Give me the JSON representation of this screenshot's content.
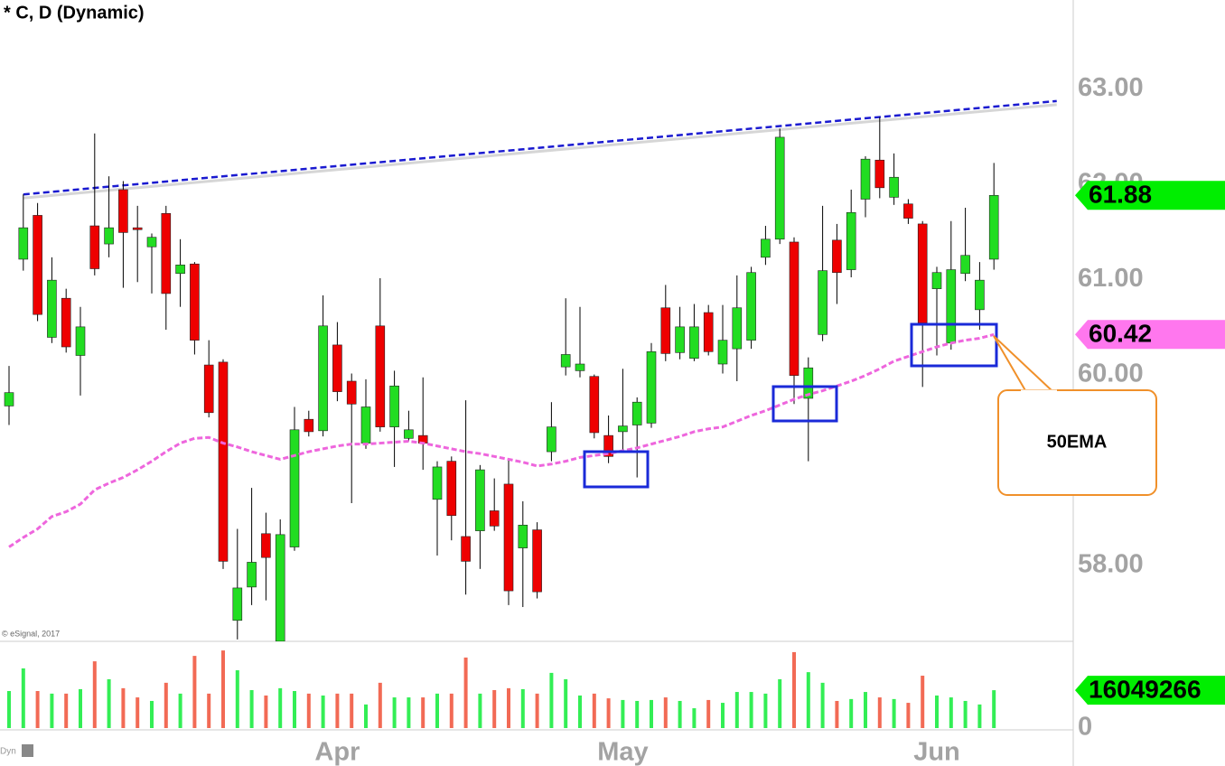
{
  "chart_data": {
    "type": "candlestick",
    "title": "* C, D (Dynamic)",
    "copyright": "© eSignal, 2017",
    "footer_label": "Dyn",
    "annotation": "50EMA",
    "categories": [
      null,
      null,
      null,
      null,
      null,
      null,
      null,
      null,
      null,
      null,
      null,
      null,
      null,
      null,
      null,
      null,
      null,
      null,
      null,
      null,
      null,
      null,
      null,
      "Apr",
      null,
      null,
      null,
      null,
      null,
      null,
      null,
      null,
      null,
      null,
      null,
      null,
      null,
      null,
      null,
      null,
      null,
      null,
      null,
      "May",
      null,
      null,
      null,
      null,
      null,
      null,
      null,
      null,
      null,
      null,
      null,
      null,
      null,
      null,
      null,
      null,
      null,
      null,
      null,
      null,
      null,
      "Jun",
      null,
      null,
      null,
      null
    ],
    "open": [
      59.67,
      61.21,
      61.67,
      60.39,
      60.8,
      60.2,
      61.56,
      61.37,
      61.94,
      61.54,
      61.34,
      61.69,
      61.06,
      61.16,
      60.1,
      60.13,
      57.42,
      57.77,
      58.33,
      57.2,
      58.19,
      59.53,
      59.41,
      60.31,
      59.93,
      59.28,
      60.51,
      59.45,
      59.33,
      59.36,
      58.69,
      59.09,
      58.3,
      58.36,
      58.57,
      58.85,
      58.18,
      58.37,
      59.19,
      60.08,
      60.04,
      59.98,
      59.36,
      59.4,
      59.47,
      59.49,
      60.7,
      60.23,
      60.17,
      60.65,
      60.11,
      60.27,
      60.36,
      61.23,
      61.42,
      61.39,
      59.75,
      60.42,
      61.41,
      61.1,
      61.84,
      62.25,
      61.86,
      61.79,
      61.58,
      60.9,
      60.33,
      61.06,
      60.68,
      61.21
    ],
    "high": [
      60.09,
      61.89,
      61.8,
      61.23,
      60.9,
      60.71,
      62.53,
      62.08,
      62.03,
      61.77,
      61.48,
      61.77,
      61.42,
      61.18,
      60.36,
      60.16,
      58.38,
      58.81,
      58.55,
      58.48,
      59.66,
      59.62,
      60.83,
      60.55,
      60.01,
      59.95,
      61.01,
      60.04,
      59.62,
      59.97,
      59.09,
      59.14,
      59.73,
      59.05,
      58.91,
      59.1,
      58.67,
      58.45,
      59.71,
      60.8,
      60.71,
      60.0,
      59.57,
      60.06,
      59.76,
      60.33,
      60.94,
      60.71,
      60.74,
      60.73,
      60.73,
      61.04,
      61.13,
      61.56,
      62.58,
      61.44,
      60.18,
      61.77,
      61.58,
      61.94,
      62.29,
      62.7,
      62.32,
      61.84,
      61.61,
      61.13,
      61.61,
      61.75,
      61.18,
      62.22
    ],
    "low": [
      59.47,
      61.09,
      60.56,
      60.33,
      60.23,
      59.78,
      61.04,
      61.23,
      60.91,
      60.97,
      60.85,
      60.47,
      60.71,
      60.21,
      59.55,
      57.96,
      57.22,
      57.58,
      57.63,
      57.2,
      58.15,
      59.35,
      59.35,
      59.72,
      58.65,
      59.22,
      59.4,
      59.03,
      59.3,
      59.0,
      58.1,
      58.26,
      57.69,
      57.96,
      58.36,
      57.58,
      57.56,
      57.65,
      59.09,
      59.99,
      59.97,
      59.33,
      59.07,
      59.19,
      58.92,
      59.44,
      60.14,
      60.16,
      60.14,
      60.2,
      60.01,
      59.93,
      60.27,
      61.15,
      61.37,
      59.69,
      59.09,
      60.35,
      60.74,
      61.02,
      61.65,
      61.85,
      61.78,
      61.58,
      59.87,
      60.2,
      60.26,
      60.98,
      60.47,
      61.1
    ],
    "close": [
      59.81,
      61.54,
      60.63,
      60.99,
      60.29,
      60.5,
      61.11,
      61.54,
      61.49,
      61.52,
      61.44,
      60.85,
      61.15,
      60.36,
      59.6,
      58.04,
      57.76,
      58.03,
      58.08,
      58.32,
      59.42,
      59.4,
      60.51,
      59.82,
      59.69,
      59.66,
      59.45,
      59.88,
      59.42,
      59.28,
      59.03,
      58.52,
      58.04,
      59.0,
      58.41,
      57.73,
      58.42,
      57.72,
      59.45,
      60.21,
      60.11,
      59.39,
      59.14,
      59.46,
      59.71,
      60.24,
      60.22,
      60.5,
      60.5,
      60.24,
      60.36,
      60.7,
      61.07,
      61.42,
      62.49,
      59.99,
      60.07,
      61.09,
      61.07,
      61.7,
      62.26,
      61.96,
      62.07,
      61.64,
      60.54,
      61.07,
      61.1,
      61.25,
      60.99,
      61.88
    ],
    "ema": [
      58.19,
      58.29,
      58.38,
      58.51,
      58.56,
      58.64,
      58.79,
      58.86,
      58.92,
      59.0,
      59.09,
      59.19,
      59.28,
      59.33,
      59.34,
      59.28,
      59.24,
      59.19,
      59.15,
      59.11,
      59.15,
      59.19,
      59.22,
      59.25,
      59.27,
      59.27,
      59.28,
      59.29,
      59.3,
      59.28,
      59.25,
      59.22,
      59.19,
      59.17,
      59.14,
      59.11,
      59.08,
      59.04,
      59.06,
      59.09,
      59.13,
      59.15,
      59.17,
      59.2,
      59.23,
      59.27,
      59.31,
      59.35,
      59.4,
      59.43,
      59.45,
      59.51,
      59.57,
      59.62,
      59.68,
      59.74,
      59.79,
      59.83,
      59.88,
      59.93,
      59.99,
      60.06,
      60.14,
      60.19,
      60.24,
      60.29,
      60.33,
      60.36,
      60.38,
      60.42
    ],
    "volume": [
      15700000,
      25300000,
      15700000,
      14600000,
      14600000,
      16500000,
      28300000,
      20700000,
      16900000,
      13000000,
      11500000,
      19200000,
      14600000,
      30600000,
      14600000,
      32900000,
      24500000,
      16100000,
      13800000,
      16900000,
      15700000,
      14600000,
      13800000,
      14600000,
      14600000,
      10000000,
      19200000,
      13000000,
      13000000,
      13000000,
      14600000,
      14600000,
      29900000,
      14600000,
      16100000,
      16900000,
      16500000,
      14600000,
      23400000,
      20700000,
      13800000,
      14600000,
      12600000,
      11900000,
      11500000,
      11900000,
      13000000,
      11500000,
      8400000,
      11900000,
      10700000,
      15300000,
      15300000,
      14600000,
      20700000,
      32200000,
      23700000,
      19200000,
      11500000,
      12300000,
      15300000,
      13000000,
      12300000,
      10700000,
      22200000,
      13800000,
      13000000,
      11500000,
      10000000,
      16049266
    ],
    "trendline": {
      "x": [
        1,
        73.4
      ],
      "values": [
        61.89,
        62.87
      ],
      "color": "#1a1ad0"
    },
    "ylim": [
      57.2,
      63.93
    ],
    "yticks": [
      {
        "value": 63,
        "label": "63.00"
      },
      {
        "value": 62,
        "label": "62.00"
      },
      {
        "value": 61,
        "label": "61.00"
      },
      {
        "value": 60,
        "label": "60.00"
      },
      {
        "value": 58,
        "label": "58.00"
      }
    ],
    "volume_ylim": [
      0,
      36000000
    ],
    "volume_yticks": [
      0
    ],
    "up_color": "#22dd22",
    "down_color": "#ee0000",
    "volume_up_color": "#33ee55",
    "volume_down_color": "#f26a55",
    "ema_color": "#ee66dd",
    "last_close_color": "#00ee00",
    "last_ema_color": "#ff77ee"
  }
}
